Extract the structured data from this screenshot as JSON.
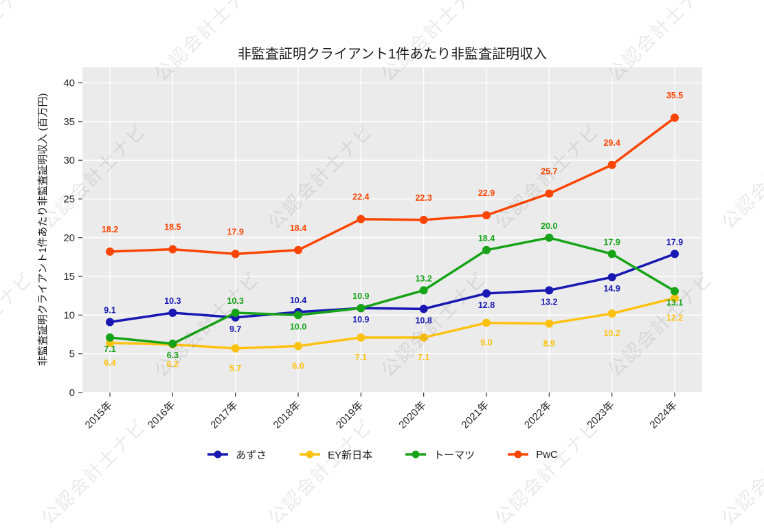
{
  "watermark": {
    "text": "公認会計士ナビ"
  },
  "chart_data": {
    "type": "line",
    "title": "非監査証明クライアント1件あたり非監査証明収入",
    "ylabel": "非監査証明クライアント1件あたり非監査証明収入 (百万円)",
    "xlabel": "",
    "categories": [
      "2015年",
      "2016年",
      "2017年",
      "2018年",
      "2019年",
      "2020年",
      "2021年",
      "2022年",
      "2023年",
      "2024年"
    ],
    "ylim": [
      0,
      42
    ],
    "yticks": [
      0,
      5,
      10,
      15,
      20,
      25,
      30,
      35,
      40
    ],
    "grid": true,
    "legend_position": "bottom",
    "plot_bg": "#ebebeb",
    "grid_color": "#ffffff",
    "series": [
      {
        "name": "あずさ",
        "color": "#1818b3",
        "values": [
          9.1,
          10.3,
          9.7,
          10.4,
          10.9,
          10.8,
          12.8,
          13.2,
          14.9,
          17.9
        ]
      },
      {
        "name": "EY新日本",
        "color": "#fdc211",
        "values": [
          6.4,
          6.2,
          5.7,
          6.0,
          7.1,
          7.1,
          9.0,
          8.9,
          10.2,
          12.2
        ]
      },
      {
        "name": "トーマツ",
        "color": "#17a317",
        "values": [
          7.1,
          6.3,
          10.3,
          10.0,
          10.9,
          13.2,
          18.4,
          20.0,
          17.9,
          13.1
        ]
      },
      {
        "name": "PwC",
        "color": "#fb4503",
        "values": [
          18.2,
          18.5,
          17.9,
          18.4,
          22.4,
          22.3,
          22.9,
          25.7,
          29.4,
          35.5
        ]
      }
    ]
  }
}
